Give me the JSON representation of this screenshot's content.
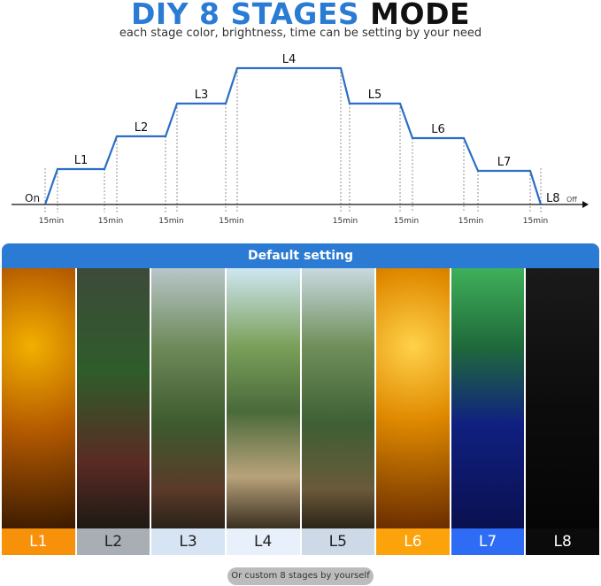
{
  "header": {
    "title_highlight": "DIY 8 STAGES",
    "title_rest": "MODE",
    "subtitle": "each stage color, brightness, time can be setting by your need"
  },
  "diagram": {
    "start_label": "On",
    "end_label": "L8",
    "end_sub_label": "Off",
    "stages": [
      "L1",
      "L2",
      "L3",
      "L4",
      "L5",
      "L6",
      "L7"
    ],
    "transition_labels": [
      "15min",
      "15min",
      "15min",
      "15min",
      "15min",
      "15min",
      "15min",
      "15min"
    ],
    "line_color": "#2a6fc4"
  },
  "default_setting": {
    "banner": "Default setting",
    "panels": [
      {
        "label": "L1",
        "label_bg": "#f7910a",
        "label_color": "#ffffff",
        "image": "amber aquarium scene"
      },
      {
        "label": "L2",
        "label_bg": "#a9aeb5",
        "label_color": "#222222",
        "image": "dim natural aquarium scene"
      },
      {
        "label": "L3",
        "label_bg": "#d7e4f3",
        "label_color": "#222222",
        "image": "bright natural aquarium scene"
      },
      {
        "label": "L4",
        "label_bg": "#e8f1fb",
        "label_color": "#222222",
        "image": "brightest aquarium scene"
      },
      {
        "label": "L5",
        "label_bg": "#cdd9e6",
        "label_color": "#222222",
        "image": "bright natural aquarium scene"
      },
      {
        "label": "L6",
        "label_bg": "#fca30c",
        "label_color": "#ffffff",
        "image": "orange aquarium scene"
      },
      {
        "label": "L7",
        "label_bg": "#2e6cf5",
        "label_color": "#ffffff",
        "image": "blue aquarium scene"
      },
      {
        "label": "L8",
        "label_bg": "#0b0b0b",
        "label_color": "#ffffff",
        "image": "dark aquarium scene"
      }
    ],
    "custom_note": "Or custom 8 stages by yourself"
  }
}
